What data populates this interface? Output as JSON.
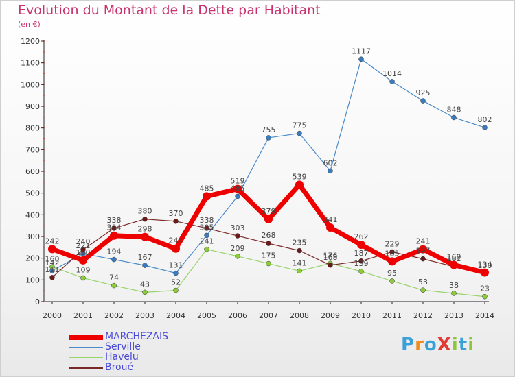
{
  "title": "Evolution du Montant de la Dette par Habitant",
  "subtitle": "(en €)",
  "logo": {
    "text": "ProXiti",
    "colors": [
      "#3aa1d8",
      "#f08c1e",
      "#3aa1d8",
      "#e23a36",
      "#8cc63f",
      "#3aa1d8",
      "#8cc63f"
    ]
  },
  "chart_data": {
    "type": "line",
    "x": [
      "2000",
      "2001",
      "2002",
      "2003",
      "2004",
      "2005",
      "2006",
      "2007",
      "2008",
      "2009",
      "2010",
      "2011",
      "2012",
      "2013",
      "2014"
    ],
    "ylim": [
      0,
      1200
    ],
    "yticks": [
      0,
      100,
      200,
      300,
      400,
      500,
      600,
      700,
      800,
      900,
      1000,
      1100,
      1200
    ],
    "grid": false,
    "legend_position": "bottom-left",
    "series": [
      {
        "name": "Serville",
        "color": "#4a8ac8",
        "point": "#3b7bbf",
        "width": 1.2,
        "values": [
          142,
          221,
          194,
          167,
          131,
          305,
          485,
          755,
          775,
          602,
          1117,
          1014,
          925,
          848,
          802
        ],
        "labels": [
          "142",
          "221",
          "194",
          "167",
          "131",
          "305",
          "485",
          "755",
          "775",
          "602",
          "1117",
          "1014",
          "925",
          "848",
          "802"
        ]
      },
      {
        "name": "Havelu",
        "color": "#99d46a",
        "point": "#8ccc3a",
        "width": 1.2,
        "values": [
          160,
          109,
          74,
          43,
          52,
          241,
          209,
          175,
          141,
          176,
          139,
          95,
          53,
          38,
          23
        ],
        "labels": [
          "160",
          "109",
          "74",
          "43",
          "52",
          "241",
          "209",
          "175",
          "141",
          "176",
          "139",
          "95",
          "53",
          "38",
          "23"
        ]
      },
      {
        "name": "Broué",
        "color": "#7a2828",
        "point": "#6b1a1a",
        "width": 1.2,
        "values": [
          111,
          240,
          338,
          380,
          370,
          338,
          303,
          268,
          235,
          168,
          187,
          229,
          197,
          161,
          130
        ],
        "labels": [
          "111",
          "240",
          "338",
          "380",
          "370",
          "338",
          "303",
          "268",
          "235",
          "168",
          "187",
          "229",
          "197",
          "161",
          "130"
        ]
      },
      {
        "name": "MARCHEZAIS",
        "color": "#ee0000",
        "point": "#ee0000",
        "width": 7,
        "values": [
          242,
          190,
          304,
          298,
          244,
          485,
          519,
          379,
          539,
          341,
          262,
          185,
          241,
          169,
          134
        ],
        "labels": [
          "242",
          "190",
          "304",
          "298",
          "244",
          "485",
          "519",
          "379",
          "539",
          "341",
          "262",
          "185",
          "241",
          "169",
          "134"
        ]
      }
    ]
  },
  "legend": [
    {
      "name": "MARCHEZAIS",
      "color": "#ee0000",
      "thickness": 8
    },
    {
      "name": "Serville",
      "color": "#4a8ac8",
      "thickness": 2
    },
    {
      "name": "Havelu",
      "color": "#99d46a",
      "thickness": 2
    },
    {
      "name": "Broué",
      "color": "#7a2828",
      "thickness": 2
    }
  ]
}
